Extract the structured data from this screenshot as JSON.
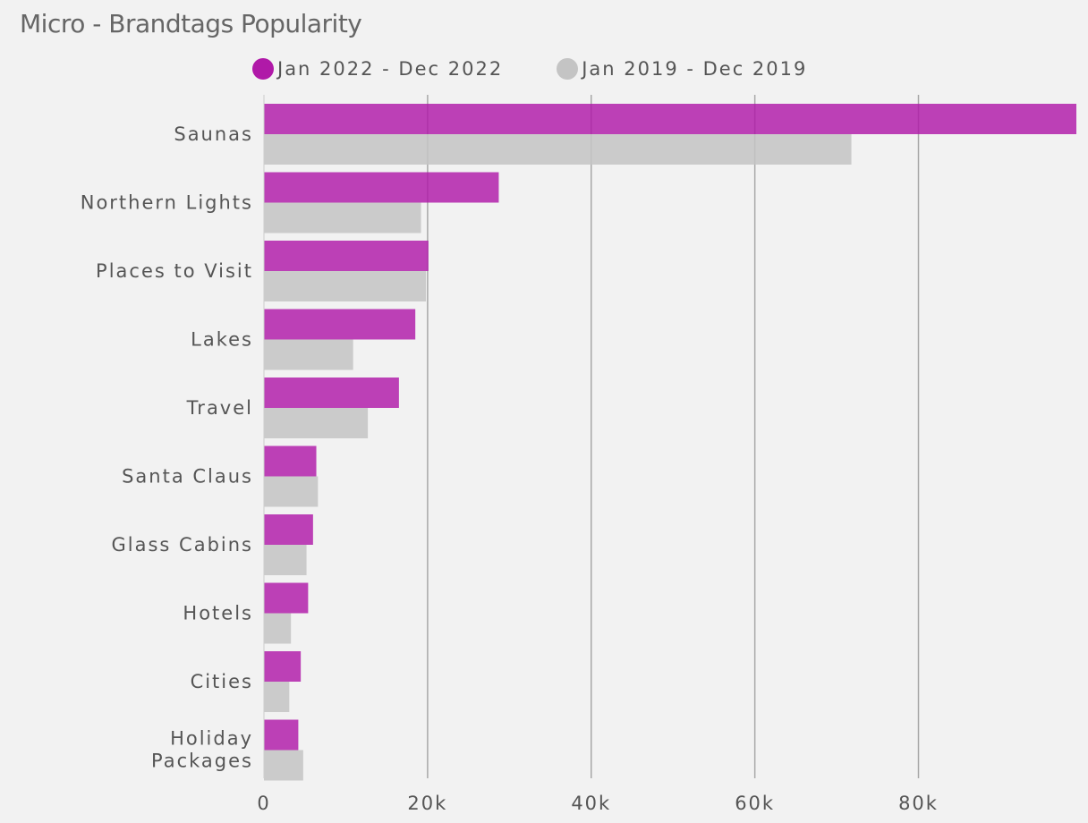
{
  "colors": {
    "series_2022": "#b019a8",
    "series_2019": "#c4c4c4",
    "grid": "#a8a8a8",
    "text": "#555555",
    "background": "#f2f2f2"
  },
  "chart_data": {
    "type": "bar",
    "orientation": "horizontal",
    "title": "Micro - Brandtags Popularity",
    "categories": [
      "Saunas",
      "Northern Lights",
      "Places to Visit",
      "Lakes",
      "Travel",
      "Santa Claus",
      "Glass Cabins",
      "Hotels",
      "Cities",
      "Holiday Packages"
    ],
    "series": [
      {
        "name": "Jan 2022 - Dec 2022",
        "color": "#b019a8",
        "values": [
          99300,
          28700,
          20100,
          18500,
          16500,
          6400,
          6000,
          5400,
          4500,
          4200
        ]
      },
      {
        "name": "Jan 2019 - Dec 2019",
        "color": "#c4c4c4",
        "values": [
          71800,
          19200,
          19800,
          10900,
          12700,
          6600,
          5200,
          3300,
          3100,
          4800
        ]
      }
    ],
    "xlim": [
      0,
      99300
    ],
    "xticks": [
      0,
      20000,
      40000,
      60000,
      80000
    ],
    "xtick_labels": [
      "0",
      "20k",
      "40k",
      "60k",
      "80k"
    ],
    "grid": true,
    "legend": "top"
  }
}
